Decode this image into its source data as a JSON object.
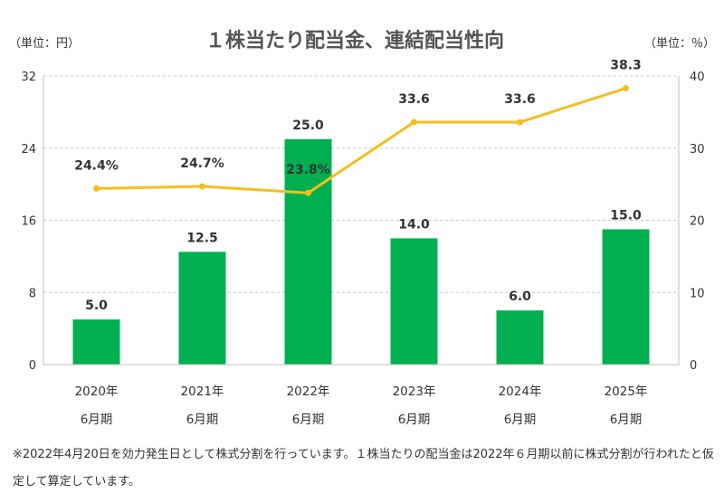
{
  "chart_data": {
    "type": "bar+line",
    "title": "１株当たり配当金、連結配当性向",
    "left_unit": "（単位：円）",
    "right_unit": "（単位：％）",
    "categories": [
      [
        "2020年",
        "6月期"
      ],
      [
        "2021年",
        "6月期"
      ],
      [
        "2022年",
        "6月期"
      ],
      [
        "2023年",
        "6月期"
      ],
      [
        "2024年",
        "6月期"
      ],
      [
        "2025年",
        "6月期"
      ]
    ],
    "bar_series": {
      "values": [
        5.0,
        12.5,
        25.0,
        14.0,
        6.0,
        15.0
      ],
      "labels": [
        "5.0",
        "12.5",
        "25.0",
        "14.0",
        "6.0",
        "15.0"
      ],
      "color": "#00b050"
    },
    "line_series": {
      "values": [
        24.4,
        24.7,
        23.8,
        33.6,
        33.6,
        38.3
      ],
      "labels": [
        "24.4%",
        "24.7%",
        "23.8%",
        "33.6",
        "33.6",
        "38.3"
      ],
      "color": "#f5be1e"
    },
    "y_left": {
      "min": 0,
      "max": 32,
      "ticks": [
        0,
        8,
        16,
        24,
        32
      ]
    },
    "y_right": {
      "min": 0,
      "max": 40,
      "ticks": [
        0,
        10,
        20,
        30,
        40
      ]
    },
    "grid": true
  },
  "footnote": "※2022年4月20日を効力発生日として株式分割を行っています。１株当たりの配当金は2022年６月期以前に株式分割が行われたと仮定して算定しています。"
}
